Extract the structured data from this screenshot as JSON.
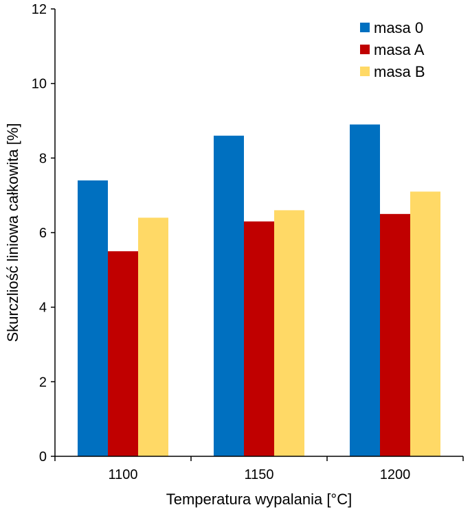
{
  "chart_data": {
    "type": "bar",
    "title": "",
    "xlabel": "Temperatura wypalania [°C]",
    "ylabel": "Skurczliość liniowa całkowita [%]",
    "categories": [
      "1100",
      "1150",
      "1200"
    ],
    "series": [
      {
        "name": "masa 0",
        "color": "#0070c0",
        "values": [
          7.4,
          8.6,
          8.9
        ]
      },
      {
        "name": "masa A",
        "color": "#c00000",
        "values": [
          5.5,
          6.3,
          6.5
        ]
      },
      {
        "name": "masa B",
        "color": "#ffd966",
        "values": [
          6.4,
          6.6,
          7.1
        ]
      }
    ],
    "ylim": [
      0,
      12
    ],
    "yticks": [
      "0",
      "2",
      "4",
      "6",
      "8",
      "10",
      "12"
    ],
    "grid": false,
    "legend_position": "top-right"
  }
}
